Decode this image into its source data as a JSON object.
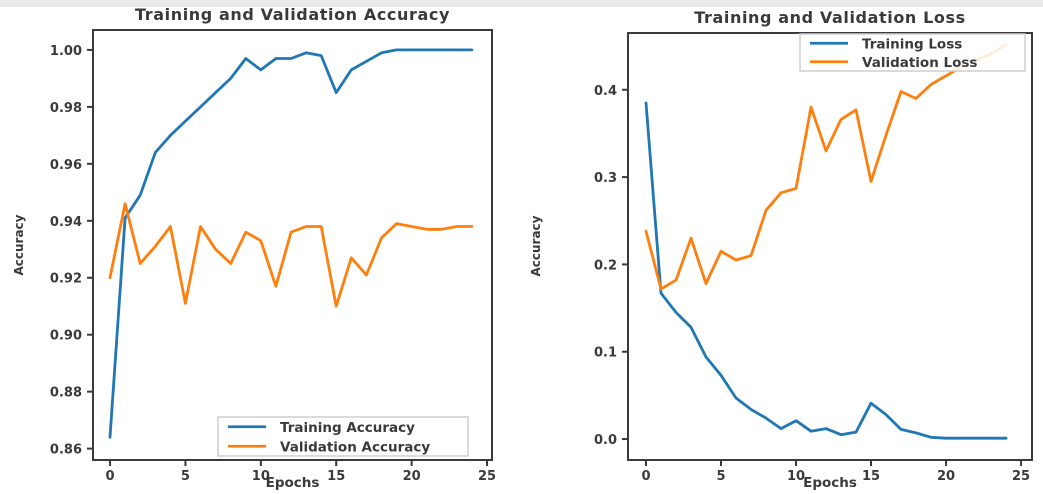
{
  "figure": {
    "background": "#ffffff",
    "axis_color": "#3a3a3a",
    "legend_border_color": "#cfcfcf"
  },
  "chart_data": "see charts[]",
  "charts": [
    {
      "type": "line",
      "title": "Training and Validation Accuracy",
      "xlabel": "Epochs",
      "ylabel": "Accuracy",
      "x": [
        0,
        1,
        2,
        3,
        4,
        5,
        6,
        7,
        8,
        9,
        10,
        11,
        12,
        13,
        14,
        15,
        16,
        17,
        18,
        19,
        20,
        21,
        22,
        23,
        24
      ],
      "xticks": [
        0,
        5,
        10,
        15,
        20,
        25
      ],
      "yticks": [
        0.86,
        0.88,
        0.9,
        0.92,
        0.94,
        0.96,
        0.98,
        1.0
      ],
      "ytick_labels": [
        "0.86",
        "0.88",
        "0.90",
        "0.92",
        "0.94",
        "0.96",
        "0.98",
        "1.00"
      ],
      "xlim": [
        -1.13,
        25.33
      ],
      "ylim": [
        0.856,
        1.007
      ],
      "grid": false,
      "legend_position": "lower right",
      "series": [
        {
          "name": "Training Accuracy",
          "color": "#1f77b4",
          "values": [
            0.864,
            0.941,
            0.949,
            0.964,
            0.97,
            0.975,
            0.98,
            0.985,
            0.99,
            0.997,
            0.993,
            0.997,
            0.997,
            0.999,
            0.998,
            0.985,
            0.993,
            0.996,
            0.999,
            1.0,
            1.0,
            1.0,
            1.0,
            1.0,
            1.0
          ]
        },
        {
          "name": "Validation Accuracy",
          "color": "#ff7f0e",
          "values": [
            0.92,
            0.946,
            0.925,
            0.931,
            0.938,
            0.911,
            0.938,
            0.93,
            0.925,
            0.936,
            0.933,
            0.917,
            0.936,
            0.938,
            0.938,
            0.91,
            0.927,
            0.921,
            0.934,
            0.939,
            0.938,
            0.937,
            0.937,
            0.938,
            0.938
          ]
        }
      ]
    },
    {
      "type": "line",
      "title": "Training and Validation Loss",
      "xlabel": "Epochs",
      "ylabel": "Accuracy",
      "x": [
        0,
        1,
        2,
        3,
        4,
        5,
        6,
        7,
        8,
        9,
        10,
        11,
        12,
        13,
        14,
        15,
        16,
        17,
        18,
        19,
        20,
        21,
        22,
        23,
        24
      ],
      "xticks": [
        0,
        5,
        10,
        15,
        20,
        25
      ],
      "yticks": [
        0.0,
        0.1,
        0.2,
        0.3,
        0.4
      ],
      "ytick_labels": [
        "0.0",
        "0.1",
        "0.2",
        "0.3",
        "0.4"
      ],
      "xlim": [
        -1.2,
        25.73
      ],
      "ylim": [
        -0.024,
        0.465
      ],
      "grid": false,
      "legend_position": "upper right",
      "series": [
        {
          "name": "Training Loss",
          "color": "#1f77b4",
          "values": [
            0.385,
            0.167,
            0.145,
            0.128,
            0.094,
            0.073,
            0.047,
            0.034,
            0.024,
            0.012,
            0.021,
            0.009,
            0.012,
            0.005,
            0.008,
            0.041,
            0.028,
            0.011,
            0.007,
            0.002,
            0.001,
            0.001,
            0.001,
            0.001,
            0.001
          ]
        },
        {
          "name": "Validation Loss",
          "color": "#ff7f0e",
          "values": [
            0.238,
            0.172,
            0.182,
            0.23,
            0.178,
            0.215,
            0.205,
            0.21,
            0.262,
            0.282,
            0.287,
            0.38,
            0.33,
            0.366,
            0.377,
            0.295,
            0.348,
            0.398,
            0.39,
            0.406,
            0.416,
            0.426,
            0.434,
            0.441,
            0.452
          ]
        }
      ]
    }
  ]
}
